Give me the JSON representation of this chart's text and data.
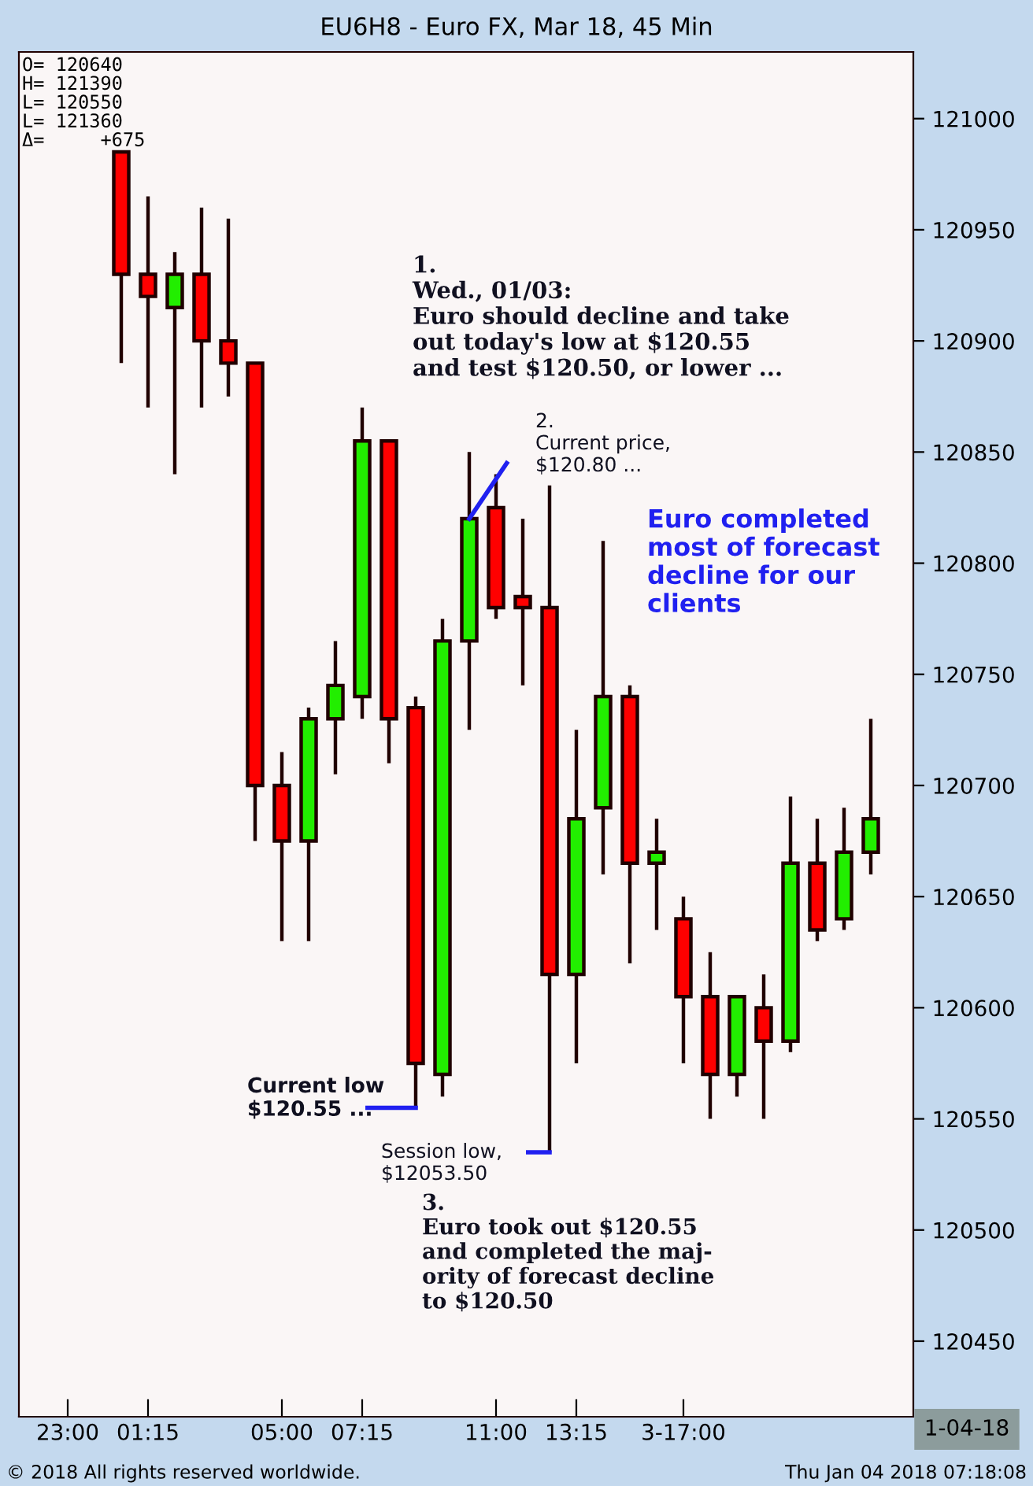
{
  "chart_data": {
    "type": "candlestick",
    "title": "EU6H8 - Euro FX, Mar 18, 45 Min",
    "categories": [
      "23:00",
      null,
      null,
      "01:15",
      null,
      null,
      null,
      null,
      "05:00",
      null,
      null,
      "07:15",
      null,
      null,
      null,
      null,
      "11:00",
      null,
      null,
      "13:15",
      null,
      null,
      null,
      "3-17:00",
      null,
      null,
      null,
      null,
      null,
      null,
      null
    ],
    "ohlc": [
      null,
      null,
      [
        120985,
        120985,
        120890,
        120930
      ],
      [
        120930,
        120965,
        120870,
        120920
      ],
      [
        120915,
        120940,
        120840,
        120930
      ],
      [
        120930,
        120960,
        120870,
        120900
      ],
      [
        120900,
        120955,
        120875,
        120890
      ],
      [
        120890,
        120890,
        120675,
        120700
      ],
      [
        120700,
        120715,
        120630,
        120675
      ],
      [
        120675,
        120735,
        120630,
        120730
      ],
      [
        120730,
        120765,
        120705,
        120745
      ],
      [
        120740,
        120870,
        120730,
        120855
      ],
      [
        120855,
        120855,
        120710,
        120730
      ],
      [
        120735,
        120740,
        120555,
        120575
      ],
      [
        120570,
        120775,
        120560,
        120765
      ],
      [
        120765,
        120850,
        120725,
        120820
      ],
      [
        120825,
        120840,
        120775,
        120780
      ],
      [
        120785,
        120820,
        120745,
        120780
      ],
      [
        120780,
        120835,
        120535,
        120615
      ],
      [
        120615,
        120725,
        120575,
        120685
      ],
      [
        120690,
        120810,
        120660,
        120740
      ],
      [
        120740,
        120745,
        120620,
        120665
      ],
      [
        120665,
        120685,
        120635,
        120670
      ],
      [
        120640,
        120650,
        120575,
        120605
      ],
      [
        120605,
        120625,
        120550,
        120570
      ],
      [
        120570,
        120605,
        120560,
        120605
      ],
      [
        120600,
        120615,
        120550,
        120585
      ],
      [
        120585,
        120695,
        120580,
        120665
      ],
      [
        120665,
        120685,
        120630,
        120635
      ],
      [
        120640,
        120690,
        120635,
        120670
      ],
      [
        120670,
        120730,
        120660,
        120685
      ]
    ],
    "colors": [
      null,
      null,
      "#ff0000",
      "#ff0000",
      "#22ee00",
      "#ff0000",
      "#ff0000",
      "#ff0000",
      "#ff0000",
      "#22ee00",
      "#22ee00",
      "#22ee00",
      "#ff0000",
      "#ff0000",
      "#22ee00",
      "#22ee00",
      "#ff0000",
      "#ff0000",
      "#ff0000",
      "#22ee00",
      "#22ee00",
      "#ff0000",
      "#22ee00",
      "#ff0000",
      "#ff0000",
      "#22ee00",
      "#ff0000",
      "#22ee00",
      "#ff0000",
      "#22ee00",
      "#22ee00"
    ],
    "ylim": [
      120416,
      121030
    ],
    "yticks": [
      120450,
      120500,
      120550,
      120600,
      120650,
      120700,
      120750,
      120800,
      120850,
      120900,
      120950,
      121000
    ],
    "grid": false,
    "annotations": [
      "O= 120640\nH= 121390\nL= 120550\nL= 121360\nΔ=     +675",
      "1.\nWed., 01/03:\nEuro should decline and take\nout today's low at $120.55\nand test $120.50, or lower ...",
      "2.\nCurrent price,\n$120.80 ...",
      "Euro completed\nmost of forecast\ndecline for our\nclients",
      "Current low\n$120.55 ...",
      "Session low,\n$12053.50",
      "3.\nEuro took out $120.55\nand completed the maj-\nority of forecast decline\nto $120.50",
      "1-04-18",
      "© 2018 All rights reserved worldwide.",
      "Thu Jan 04 2018 07:18:08"
    ]
  }
}
